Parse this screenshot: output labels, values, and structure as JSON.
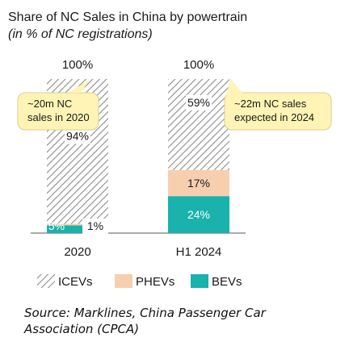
{
  "header": {
    "title": "Share of NC Sales in China by powertrain",
    "subtitle": "(in % of NC registrations)"
  },
  "chart_data": {
    "type": "bar",
    "stacked": true,
    "categories": [
      "2020",
      "H1 2024"
    ],
    "series": [
      {
        "name": "BEVs",
        "values": [
          5,
          24
        ],
        "labels": [
          "5%",
          "24%"
        ],
        "color": "#19b2ad"
      },
      {
        "name": "PHEVs",
        "values": [
          1,
          17
        ],
        "labels": [
          "1%",
          "17%"
        ],
        "color": "#f7cfae"
      },
      {
        "name": "ICEVs",
        "values": [
          94,
          59
        ],
        "labels": [
          "94%",
          "59%"
        ],
        "color": "#9a9a9a"
      }
    ],
    "totals": [
      "100%",
      "100%"
    ],
    "ylim": [
      0,
      100
    ],
    "legend_position": "bottom",
    "annotations": [
      {
        "category": "2020",
        "text": [
          "~20m NC",
          "sales in 2020"
        ]
      },
      {
        "category": "H1 2024",
        "text": [
          "~22m NC sales",
          "expected in 2024"
        ]
      }
    ]
  },
  "source": {
    "text": "Source: Marklines, China Passenger Car Association (CPCA)"
  }
}
